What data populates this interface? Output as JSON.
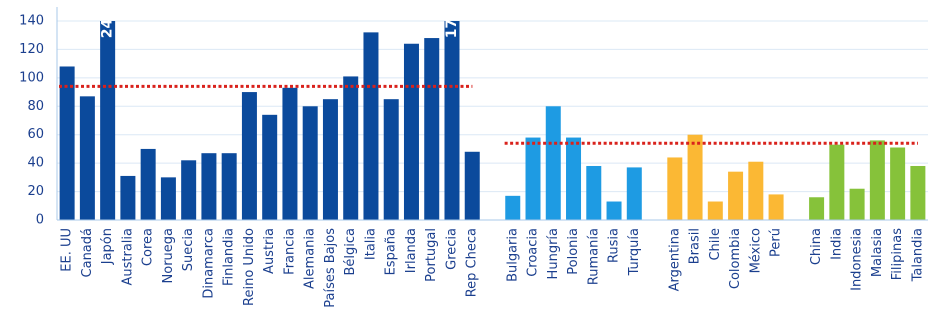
{
  "chart_data": {
    "type": "bar",
    "categories": [
      "EE. UU",
      "Canadá",
      "Japón",
      "Australia",
      "Corea",
      "Noruega",
      "Suecia",
      "Dinamarca",
      "Finlandia",
      "Reino Unido",
      "Austria",
      "Francia",
      "Alemania",
      "Países Bajos",
      "Bélgica",
      "Italia",
      "España",
      "Irlanda",
      "Portugal",
      "Grecia",
      "Rep Checa",
      null,
      "Bulgaria",
      "Croacia",
      "Hungría",
      "Polonia",
      "Rumanía",
      "Rusia",
      "Turquía",
      null,
      "Argentina",
      "Brasil",
      "Chile",
      "Colombia",
      "México",
      "Perú",
      null,
      "China",
      "India",
      "Indonesia",
      "Malasia",
      "Filipinas",
      "Talandia"
    ],
    "values": [
      108,
      87,
      245,
      31,
      50,
      30,
      42,
      47,
      47,
      90,
      74,
      93,
      80,
      85,
      101,
      132,
      85,
      124,
      128,
      176,
      48,
      null,
      17,
      58,
      80,
      58,
      38,
      13,
      37,
      null,
      44,
      60,
      13,
      34,
      41,
      18,
      null,
      16,
      53,
      22,
      56,
      51,
      38
    ],
    "value_labels": [
      null,
      null,
      "245",
      null,
      null,
      null,
      null,
      null,
      null,
      null,
      null,
      null,
      null,
      null,
      null,
      null,
      null,
      null,
      null,
      "176",
      null,
      null,
      null,
      null,
      null,
      null,
      null,
      null,
      null,
      null,
      null,
      null,
      null,
      null,
      null,
      null,
      null,
      null,
      null,
      null,
      null,
      null,
      null
    ],
    "colors": [
      "#0b4a9c",
      "#0b4a9c",
      "#0b4a9c",
      "#0b4a9c",
      "#0b4a9c",
      "#0b4a9c",
      "#0b4a9c",
      "#0b4a9c",
      "#0b4a9c",
      "#0b4a9c",
      "#0b4a9c",
      "#0b4a9c",
      "#0b4a9c",
      "#0b4a9c",
      "#0b4a9c",
      "#0b4a9c",
      "#0b4a9c",
      "#0b4a9c",
      "#0b4a9c",
      "#0b4a9c",
      "#0b4a9c",
      null,
      "#1e9be3",
      "#1e9be3",
      "#1e9be3",
      "#1e9be3",
      "#1e9be3",
      "#1e9be3",
      "#1e9be3",
      null,
      "#fbb834",
      "#fbb834",
      "#fbb834",
      "#fbb834",
      "#fbb834",
      "#fbb834",
      null,
      "#86c23a",
      "#86c23a",
      "#86c23a",
      "#86c23a",
      "#86c23a",
      "#86c23a"
    ],
    "reference_lines": [
      {
        "value": 94,
        "from": 0,
        "to": 20,
        "color": "#d9221c"
      },
      {
        "value": 54,
        "from": 22,
        "to": 42,
        "color": "#d9221c"
      }
    ],
    "ylim": [
      0,
      140
    ],
    "yticks": [
      0,
      20,
      40,
      60,
      80,
      100,
      120,
      140
    ],
    "grid": true
  }
}
